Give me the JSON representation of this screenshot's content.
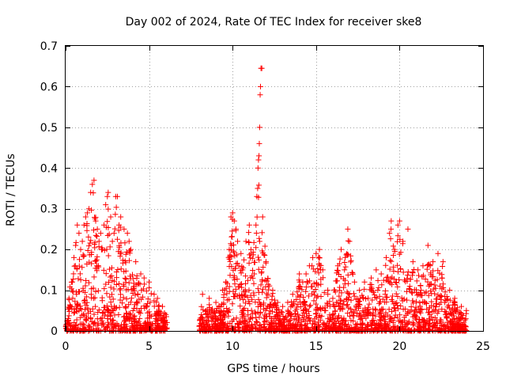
{
  "chart_data": {
    "type": "scatter",
    "title": "Day 002 of 2024, Rate Of TEC Index for receiver ske8",
    "xlabel": "GPS time / hours",
    "ylabel": "ROTI / TECUs",
    "xlim": [
      0,
      25
    ],
    "ylim": [
      0,
      0.7
    ],
    "xticks": [
      0,
      5,
      10,
      15,
      20,
      25
    ],
    "yticks": [
      0,
      0.1,
      0.2,
      0.3,
      0.4,
      0.5,
      0.6,
      0.7
    ],
    "xtick_labels": [
      "0",
      "5",
      "10",
      "15",
      "20",
      "25"
    ],
    "ytick_labels": [
      "0",
      "0.1",
      "0.2",
      "0.3",
      "0.4",
      "0.5",
      "0.6",
      "0.7"
    ],
    "grid": true,
    "marker": "+",
    "color": "#ff0000",
    "series": [
      {
        "name": "ROTI",
        "segments": [
          [
            0,
            6.1
          ],
          [
            8.0,
            24.0
          ]
        ],
        "points": [
          [
            0.2,
            0.08
          ],
          [
            0.4,
            0.12
          ],
          [
            0.5,
            0.18
          ],
          [
            0.6,
            0.21
          ],
          [
            0.7,
            0.26
          ],
          [
            0.8,
            0.24
          ],
          [
            0.9,
            0.2
          ],
          [
            1.0,
            0.22
          ],
          [
            1.1,
            0.26
          ],
          [
            1.2,
            0.28
          ],
          [
            1.3,
            0.29
          ],
          [
            1.4,
            0.3
          ],
          [
            1.5,
            0.34
          ],
          [
            1.6,
            0.36
          ],
          [
            1.7,
            0.37
          ],
          [
            1.8,
            0.27
          ],
          [
            1.9,
            0.25
          ],
          [
            2.0,
            0.22
          ],
          [
            2.1,
            0.24
          ],
          [
            2.2,
            0.2
          ],
          [
            2.3,
            0.26
          ],
          [
            2.4,
            0.31
          ],
          [
            2.5,
            0.33
          ],
          [
            2.55,
            0.34
          ],
          [
            2.7,
            0.28
          ],
          [
            2.8,
            0.22
          ],
          [
            2.9,
            0.24
          ],
          [
            3.0,
            0.33
          ],
          [
            3.1,
            0.33
          ],
          [
            3.2,
            0.26
          ],
          [
            3.3,
            0.28
          ],
          [
            3.5,
            0.25
          ],
          [
            3.7,
            0.24
          ],
          [
            3.8,
            0.22
          ],
          [
            3.9,
            0.2
          ],
          [
            4.2,
            0.17
          ],
          [
            4.5,
            0.14
          ],
          [
            4.7,
            0.13
          ],
          [
            5.0,
            0.12
          ],
          [
            5.3,
            0.09
          ],
          [
            5.5,
            0.08
          ],
          [
            5.8,
            0.06
          ],
          [
            6.0,
            0.04
          ],
          [
            8.2,
            0.09
          ],
          [
            8.6,
            0.08
          ],
          [
            9.0,
            0.07
          ],
          [
            9.4,
            0.1
          ],
          [
            9.6,
            0.12
          ],
          [
            9.8,
            0.2
          ],
          [
            9.9,
            0.28
          ],
          [
            10.0,
            0.29
          ],
          [
            10.1,
            0.27
          ],
          [
            10.2,
            0.25
          ],
          [
            10.3,
            0.22
          ],
          [
            10.5,
            0.19
          ],
          [
            10.6,
            0.15
          ],
          [
            10.8,
            0.22
          ],
          [
            11.0,
            0.26
          ],
          [
            11.1,
            0.19
          ],
          [
            11.3,
            0.14
          ],
          [
            11.4,
            0.26
          ],
          [
            11.45,
            0.33
          ],
          [
            11.5,
            0.35
          ],
          [
            11.52,
            0.4
          ],
          [
            11.55,
            0.42
          ],
          [
            11.58,
            0.43
          ],
          [
            11.6,
            0.46
          ],
          [
            11.62,
            0.5
          ],
          [
            11.65,
            0.58
          ],
          [
            11.67,
            0.6
          ],
          [
            11.7,
            0.645
          ],
          [
            11.75,
            0.645
          ],
          [
            11.8,
            0.28
          ],
          [
            12.0,
            0.17
          ],
          [
            12.4,
            0.1
          ],
          [
            12.7,
            0.07
          ],
          [
            13.0,
            0.06
          ],
          [
            13.3,
            0.07
          ],
          [
            13.6,
            0.09
          ],
          [
            14.0,
            0.14
          ],
          [
            14.2,
            0.12
          ],
          [
            14.4,
            0.14
          ],
          [
            14.6,
            0.16
          ],
          [
            14.8,
            0.18
          ],
          [
            15.0,
            0.19
          ],
          [
            15.2,
            0.2
          ],
          [
            15.4,
            0.15
          ],
          [
            15.7,
            0.1
          ],
          [
            16.0,
            0.08
          ],
          [
            16.3,
            0.16
          ],
          [
            16.5,
            0.2
          ],
          [
            16.7,
            0.15
          ],
          [
            16.9,
            0.25
          ],
          [
            17.0,
            0.22
          ],
          [
            17.3,
            0.12
          ],
          [
            17.6,
            0.1
          ],
          [
            17.9,
            0.12
          ],
          [
            18.3,
            0.13
          ],
          [
            18.6,
            0.15
          ],
          [
            18.9,
            0.14
          ],
          [
            19.2,
            0.18
          ],
          [
            19.4,
            0.24
          ],
          [
            19.5,
            0.27
          ],
          [
            19.7,
            0.2
          ],
          [
            19.9,
            0.26
          ],
          [
            20.0,
            0.27
          ],
          [
            20.2,
            0.22
          ],
          [
            20.5,
            0.25
          ],
          [
            20.8,
            0.17
          ],
          [
            21.1,
            0.15
          ],
          [
            21.4,
            0.16
          ],
          [
            21.7,
            0.21
          ],
          [
            22.0,
            0.17
          ],
          [
            22.3,
            0.19
          ],
          [
            22.6,
            0.17
          ],
          [
            23.0,
            0.1
          ],
          [
            23.3,
            0.08
          ],
          [
            23.7,
            0.06
          ],
          [
            24.0,
            0.05
          ]
        ]
      }
    ]
  }
}
